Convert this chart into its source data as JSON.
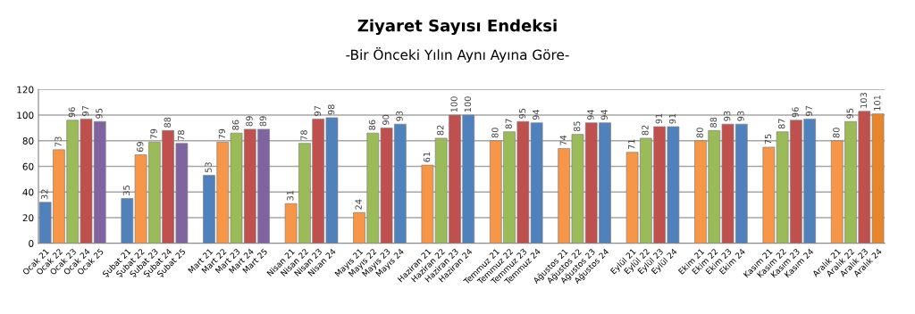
{
  "chart_data": {
    "type": "bar",
    "title": "Ziyaret Sayısı Endeksi",
    "subtitle": "-Bir Önceki Yılın Aynı Ayına Göre-",
    "categories": [
      "Ocak 21",
      "Ocak 22",
      "Ocak 23",
      "Ocak 24",
      "Ocak 25",
      null,
      "Şubat 21",
      "Şubat 22",
      "Şubat 23",
      "Şubat 24",
      "Şubat 25",
      null,
      "Mart 21",
      "Mart 22",
      "Mart 23",
      "Mart 24",
      "Mart 25",
      null,
      "Nisan 21",
      "Nisan 22",
      "Nisan 23",
      "Nisan 24",
      null,
      "Mayıs 21",
      "Mayıs 22",
      "Mayıs 23",
      "Mayıs 24",
      null,
      "Haziran 21",
      "Haziran 22",
      "Haziran 23",
      "Haziran 24",
      null,
      "Temmuz 21",
      "Temmuz 22",
      "Temmuz 23",
      "Temmuz 24",
      null,
      "Ağustos 21",
      "Ağustos 22",
      "Ağustos 23",
      "Ağustos 24",
      null,
      "Eylül 21",
      "Eylül 22",
      "Eylül 23",
      "Eylül 24",
      null,
      "Ekim 21",
      "Ekim 22",
      "Ekim 23",
      "Ekim 24",
      null,
      "Kasım 21",
      "Kasım 22",
      "Kasım 23",
      "Kasım 24",
      null,
      "Aralık 21",
      "Aralık 22",
      "Aralık 23",
      "Aralık 24"
    ],
    "values": [
      32,
      73,
      96,
      97,
      95,
      null,
      35,
      69,
      79,
      88,
      78,
      null,
      53,
      79,
      86,
      89,
      89,
      null,
      31,
      78,
      97,
      98,
      null,
      24,
      86,
      90,
      93,
      null,
      61,
      82,
      100,
      100,
      null,
      80,
      87,
      95,
      94,
      null,
      74,
      85,
      94,
      94,
      null,
      71,
      82,
      91,
      91,
      null,
      80,
      88,
      93,
      93,
      null,
      75,
      87,
      96,
      97,
      null,
      80,
      95,
      103,
      101
    ],
    "colors": [
      "#4f81bd",
      "#f79646",
      "#9bbb59",
      "#c0504d",
      "#8064a2",
      null,
      "#4f81bd",
      "#f79646",
      "#9bbb59",
      "#c0504d",
      "#8064a2",
      null,
      "#4f81bd",
      "#f79646",
      "#9bbb59",
      "#c0504d",
      "#8064a2",
      null,
      "#f79646",
      "#9bbb59",
      "#c0504d",
      "#4f81bd",
      null,
      "#f79646",
      "#9bbb59",
      "#c0504d",
      "#4f81bd",
      null,
      "#f79646",
      "#9bbb59",
      "#c0504d",
      "#4f81bd",
      null,
      "#f79646",
      "#9bbb59",
      "#c0504d",
      "#4f81bd",
      null,
      "#f79646",
      "#9bbb59",
      "#c0504d",
      "#4f81bd",
      null,
      "#f79646",
      "#9bbb59",
      "#c0504d",
      "#4f81bd",
      null,
      "#f79646",
      "#9bbb59",
      "#c0504d",
      "#4f81bd",
      null,
      "#f79646",
      "#9bbb59",
      "#c0504d",
      "#4f81bd",
      null,
      "#f79646",
      "#9bbb59",
      "#c0504d",
      "#e8842a"
    ],
    "ylim": [
      0,
      120
    ],
    "yticks": [
      0,
      20,
      40,
      60,
      80,
      100,
      120
    ],
    "grid": "y",
    "data_labels": true,
    "legend": false
  }
}
